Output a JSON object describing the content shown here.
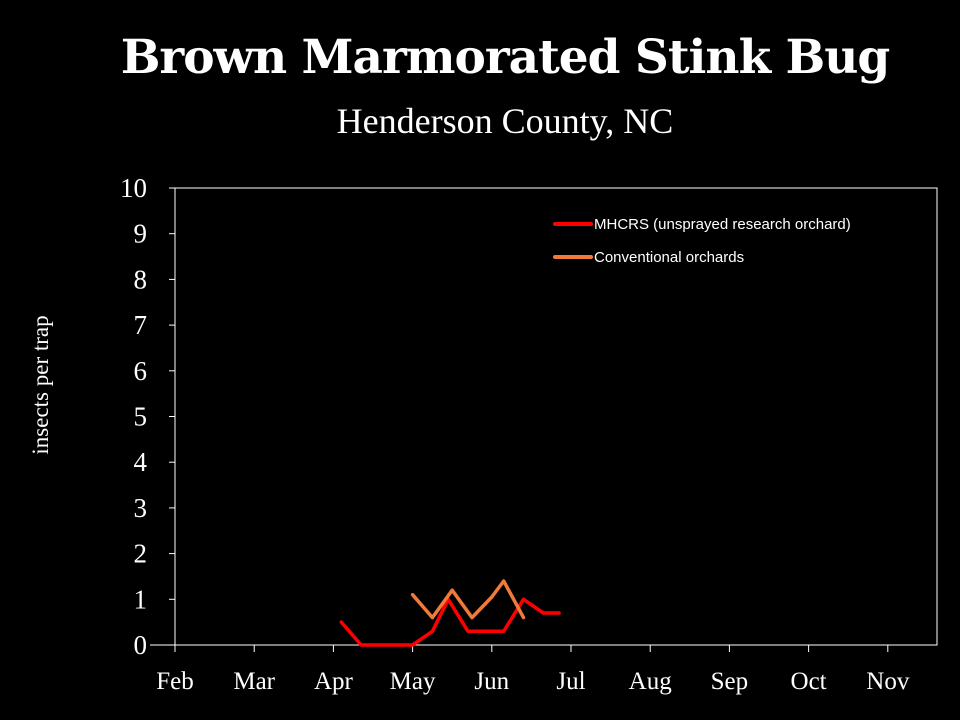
{
  "chart_data": {
    "type": "line",
    "title": "Brown Marmorated Stink Bug",
    "subtitle": "Henderson County, NC",
    "ylabel": "insects per trap",
    "xlabel": "",
    "x_categories": [
      "Feb",
      "Mar",
      "Apr",
      "May",
      "Jun",
      "Jul",
      "Aug",
      "Sep",
      "Oct",
      "Nov"
    ],
    "ylim": [
      0,
      10
    ],
    "y_ticks": [
      "0",
      "1",
      "2",
      "3",
      "4",
      "5",
      "6",
      "7",
      "8",
      "9",
      "10"
    ],
    "grid": false,
    "legend_position": "top-right",
    "series": [
      {
        "name": "MHCRS (unsprayed research orchard)",
        "color": "#ff0000",
        "x": [
          2.1,
          2.35,
          2.6,
          2.85,
          3.0,
          3.25,
          3.45,
          3.7,
          3.95,
          4.15,
          4.4,
          4.65,
          4.85
        ],
        "y": [
          0.5,
          0.0,
          0.0,
          0.0,
          0.0,
          0.3,
          1.0,
          0.3,
          0.3,
          0.3,
          1.0,
          0.7,
          0.7
        ]
      },
      {
        "name": "Conventional orchards",
        "color": "#f07a3a",
        "x": [
          3.0,
          3.25,
          3.5,
          3.75,
          4.0,
          4.15,
          4.4
        ],
        "y": [
          1.1,
          0.6,
          1.2,
          0.6,
          1.05,
          1.4,
          0.6
        ]
      }
    ]
  }
}
